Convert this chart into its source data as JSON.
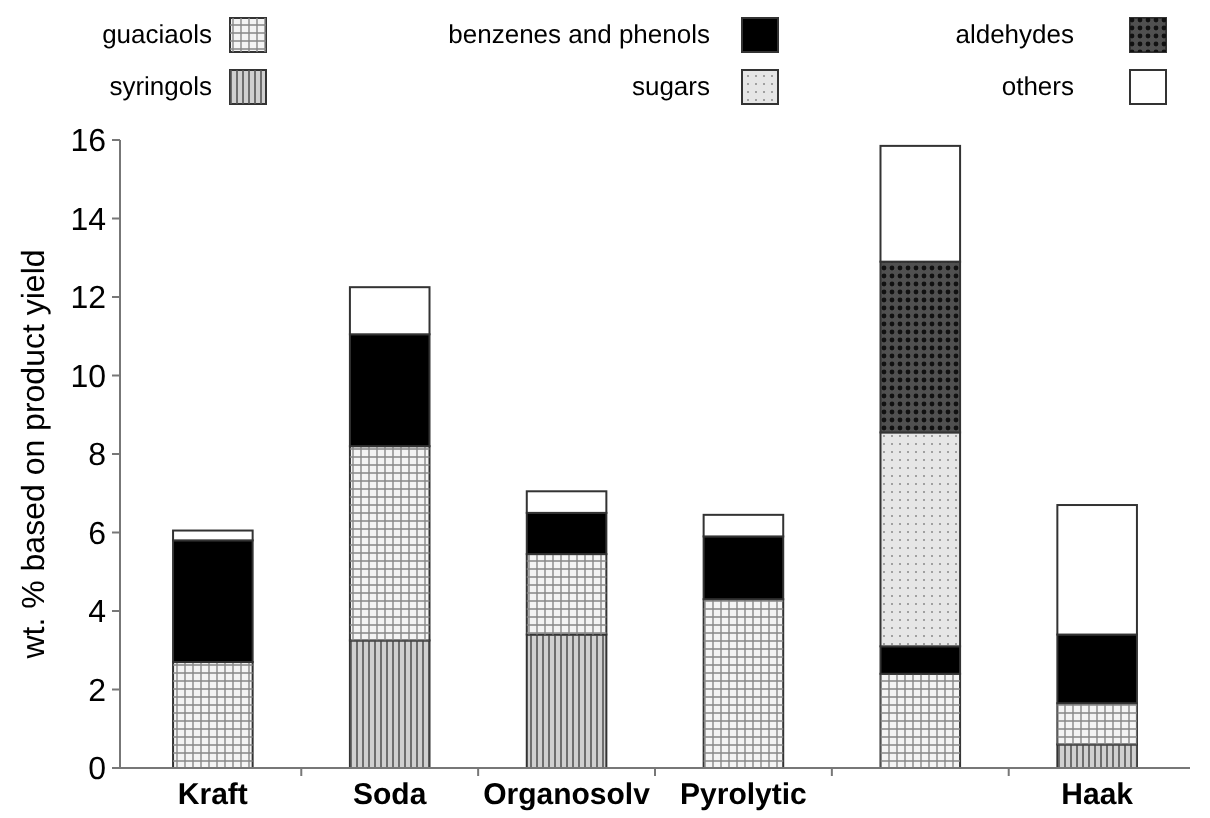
{
  "chart_data": {
    "type": "bar",
    "stacked": true,
    "ylabel": "wt. % based on product yield",
    "categories": [
      "Kraft",
      "Soda",
      "Organosolv",
      "Pyrolytic",
      null,
      "Haak"
    ],
    "ylim": [
      0,
      16
    ],
    "yticks": [
      0,
      2,
      4,
      6,
      8,
      10,
      12,
      14,
      16
    ],
    "grid": false,
    "legend": "top",
    "series": [
      {
        "name": "syringols",
        "color": "#d0d0d0",
        "values": [
          0,
          3.25,
          3.4,
          0,
          0,
          0.6
        ]
      },
      {
        "name": "guaciaols",
        "color": "#f4f4f4",
        "values": [
          2.7,
          4.95,
          2.05,
          4.3,
          2.4,
          1.05
        ]
      },
      {
        "name": "benzenes and phenols",
        "color": "#000000",
        "values": [
          3.1,
          2.85,
          1.05,
          1.6,
          0.7,
          1.75
        ]
      },
      {
        "name": "sugars",
        "color": "#e6e6e6",
        "values": [
          0,
          0,
          0,
          0,
          5.45,
          0
        ]
      },
      {
        "name": "aldehydes",
        "color": "#505050",
        "values": [
          0,
          0,
          0,
          0,
          4.35,
          0
        ]
      },
      {
        "name": "others",
        "color": "#ffffff",
        "values": [
          0.25,
          1.2,
          0.55,
          0.55,
          2.95,
          3.3
        ]
      }
    ]
  }
}
